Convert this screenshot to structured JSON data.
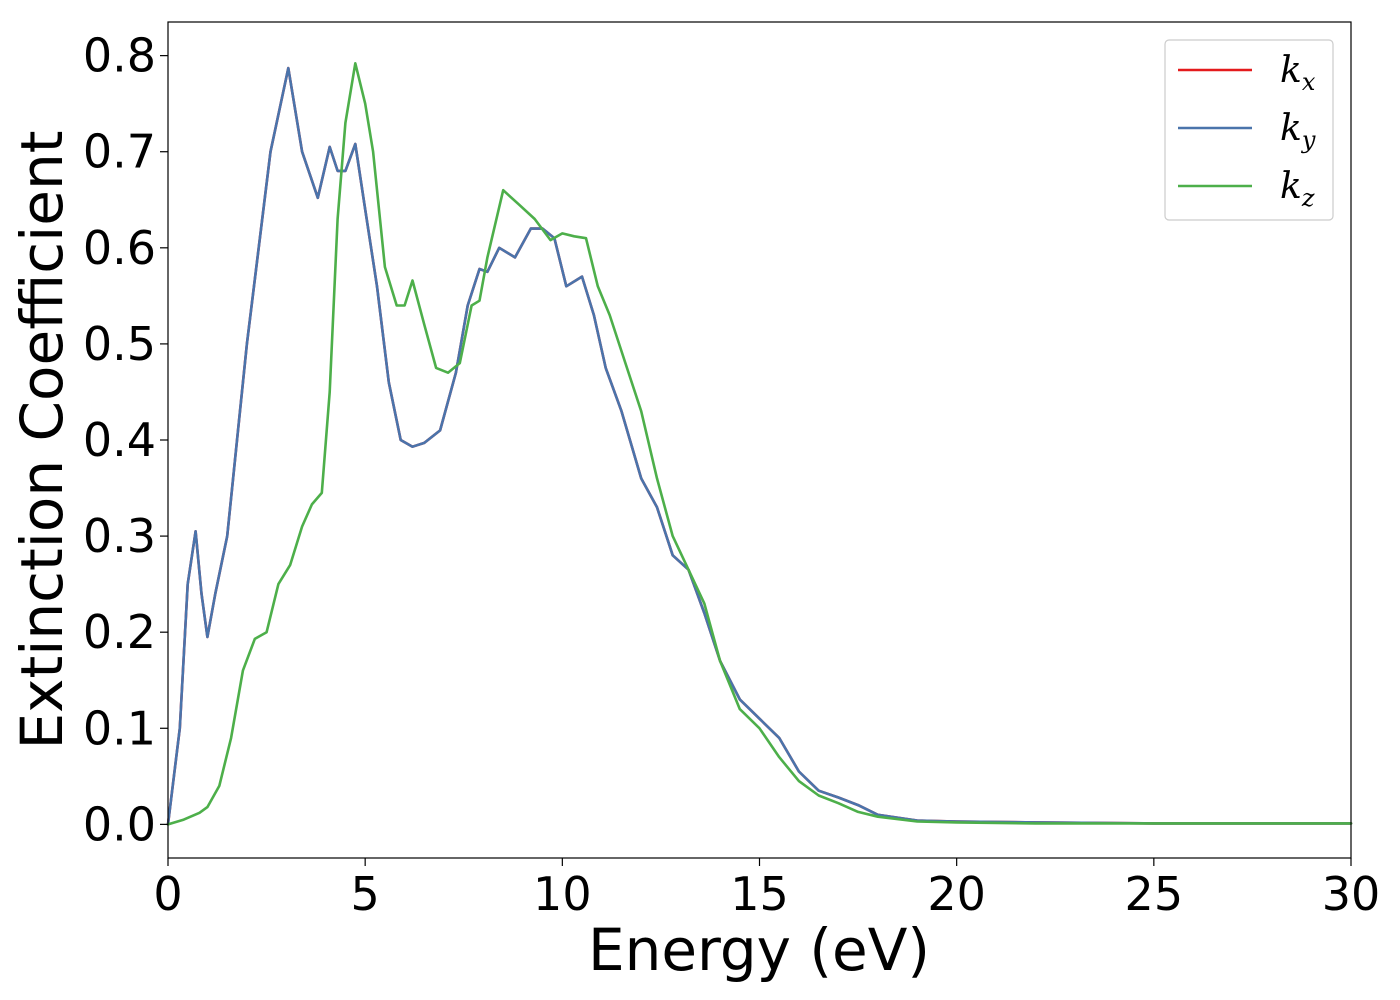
{
  "chart_data": {
    "type": "line",
    "xlabel": "Energy (eV)",
    "ylabel": "Extinction Coefficient",
    "xlim": [
      0,
      30
    ],
    "ylim": [
      -0.035,
      0.835
    ],
    "xticks": [
      0,
      5,
      10,
      15,
      20,
      25,
      30
    ],
    "xtick_labels": [
      "0",
      "5",
      "10",
      "15",
      "20",
      "25",
      "30"
    ],
    "yticks": [
      0.0,
      0.1,
      0.2,
      0.3,
      0.4,
      0.5,
      0.6,
      0.7,
      0.8
    ],
    "ytick_labels": [
      "0.0",
      "0.1",
      "0.2",
      "0.3",
      "0.4",
      "0.5",
      "0.6",
      "0.7",
      "0.8"
    ],
    "grid": false,
    "legend_position": "top-right",
    "series": [
      {
        "name": "k",
        "subscript": "x",
        "color": "#e41a1c",
        "x": [
          0,
          0.3,
          0.5,
          0.7,
          0.85,
          1.0,
          1.2,
          1.5,
          1.8,
          2.0,
          2.3,
          2.6,
          3.05,
          3.4,
          3.8,
          4.1,
          4.3,
          4.5,
          4.75,
          5.0,
          5.3,
          5.6,
          5.9,
          6.2,
          6.5,
          6.9,
          7.3,
          7.6,
          7.9,
          8.1,
          8.4,
          8.8,
          9.2,
          9.5,
          9.8,
          10.1,
          10.5,
          10.8,
          11.1,
          11.5,
          12.0,
          12.4,
          12.8,
          13.2,
          13.6,
          14.0,
          14.5,
          15.0,
          15.5,
          16.0,
          16.5,
          17.0,
          17.5,
          18.0,
          19.0,
          20.0,
          22.0,
          25.0,
          28.0,
          30.0
        ],
        "y": [
          0.0,
          0.1,
          0.25,
          0.305,
          0.24,
          0.195,
          0.24,
          0.3,
          0.42,
          0.5,
          0.6,
          0.7,
          0.787,
          0.7,
          0.652,
          0.705,
          0.68,
          0.68,
          0.708,
          0.64,
          0.56,
          0.46,
          0.4,
          0.393,
          0.397,
          0.41,
          0.47,
          0.54,
          0.578,
          0.575,
          0.6,
          0.59,
          0.62,
          0.62,
          0.61,
          0.56,
          0.57,
          0.53,
          0.475,
          0.43,
          0.36,
          0.33,
          0.28,
          0.265,
          0.22,
          0.17,
          0.13,
          0.11,
          0.09,
          0.055,
          0.035,
          0.028,
          0.02,
          0.01,
          0.004,
          0.003,
          0.002,
          0.001,
          0.001,
          0.001
        ]
      },
      {
        "name": "k",
        "subscript": "y",
        "color": "#4a74ab",
        "x": [
          0,
          0.3,
          0.5,
          0.7,
          0.85,
          1.0,
          1.2,
          1.5,
          1.8,
          2.0,
          2.3,
          2.6,
          3.05,
          3.4,
          3.8,
          4.1,
          4.3,
          4.5,
          4.75,
          5.0,
          5.3,
          5.6,
          5.9,
          6.2,
          6.5,
          6.9,
          7.3,
          7.6,
          7.9,
          8.1,
          8.4,
          8.8,
          9.2,
          9.5,
          9.8,
          10.1,
          10.5,
          10.8,
          11.1,
          11.5,
          12.0,
          12.4,
          12.8,
          13.2,
          13.6,
          14.0,
          14.5,
          15.0,
          15.5,
          16.0,
          16.5,
          17.0,
          17.5,
          18.0,
          19.0,
          20.0,
          22.0,
          25.0,
          28.0,
          30.0
        ],
        "y": [
          0.0,
          0.1,
          0.25,
          0.305,
          0.24,
          0.195,
          0.24,
          0.3,
          0.42,
          0.5,
          0.6,
          0.7,
          0.787,
          0.7,
          0.652,
          0.705,
          0.68,
          0.68,
          0.708,
          0.64,
          0.56,
          0.46,
          0.4,
          0.393,
          0.397,
          0.41,
          0.47,
          0.54,
          0.578,
          0.575,
          0.6,
          0.59,
          0.62,
          0.62,
          0.61,
          0.56,
          0.57,
          0.53,
          0.475,
          0.43,
          0.36,
          0.33,
          0.28,
          0.265,
          0.22,
          0.17,
          0.13,
          0.11,
          0.09,
          0.055,
          0.035,
          0.028,
          0.02,
          0.01,
          0.004,
          0.003,
          0.002,
          0.001,
          0.001,
          0.001
        ]
      },
      {
        "name": "k",
        "subscript": "z",
        "color": "#4daf4a",
        "x": [
          0,
          0.4,
          0.8,
          1.0,
          1.3,
          1.6,
          1.9,
          2.2,
          2.5,
          2.8,
          3.1,
          3.4,
          3.65,
          3.9,
          4.1,
          4.3,
          4.5,
          4.75,
          5.0,
          5.2,
          5.5,
          5.8,
          6.0,
          6.2,
          6.5,
          6.8,
          7.1,
          7.4,
          7.7,
          7.9,
          8.1,
          8.5,
          8.9,
          9.3,
          9.7,
          10.0,
          10.3,
          10.6,
          10.9,
          11.2,
          11.6,
          12.0,
          12.4,
          12.8,
          13.2,
          13.6,
          14.0,
          14.5,
          15.0,
          15.5,
          16.0,
          16.5,
          17.0,
          17.5,
          18.0,
          19.0,
          20.0,
          22.0,
          25.0,
          28.0,
          30.0
        ],
        "y": [
          0.0,
          0.005,
          0.012,
          0.018,
          0.04,
          0.09,
          0.16,
          0.193,
          0.2,
          0.25,
          0.27,
          0.31,
          0.333,
          0.345,
          0.45,
          0.63,
          0.73,
          0.792,
          0.75,
          0.7,
          0.58,
          0.54,
          0.54,
          0.566,
          0.52,
          0.475,
          0.47,
          0.48,
          0.54,
          0.545,
          0.59,
          0.66,
          0.645,
          0.63,
          0.608,
          0.615,
          0.612,
          0.61,
          0.56,
          0.53,
          0.48,
          0.43,
          0.36,
          0.3,
          0.265,
          0.23,
          0.17,
          0.12,
          0.1,
          0.07,
          0.045,
          0.03,
          0.022,
          0.013,
          0.008,
          0.003,
          0.002,
          0.001,
          0.001,
          0.001,
          0.001
        ]
      }
    ]
  }
}
